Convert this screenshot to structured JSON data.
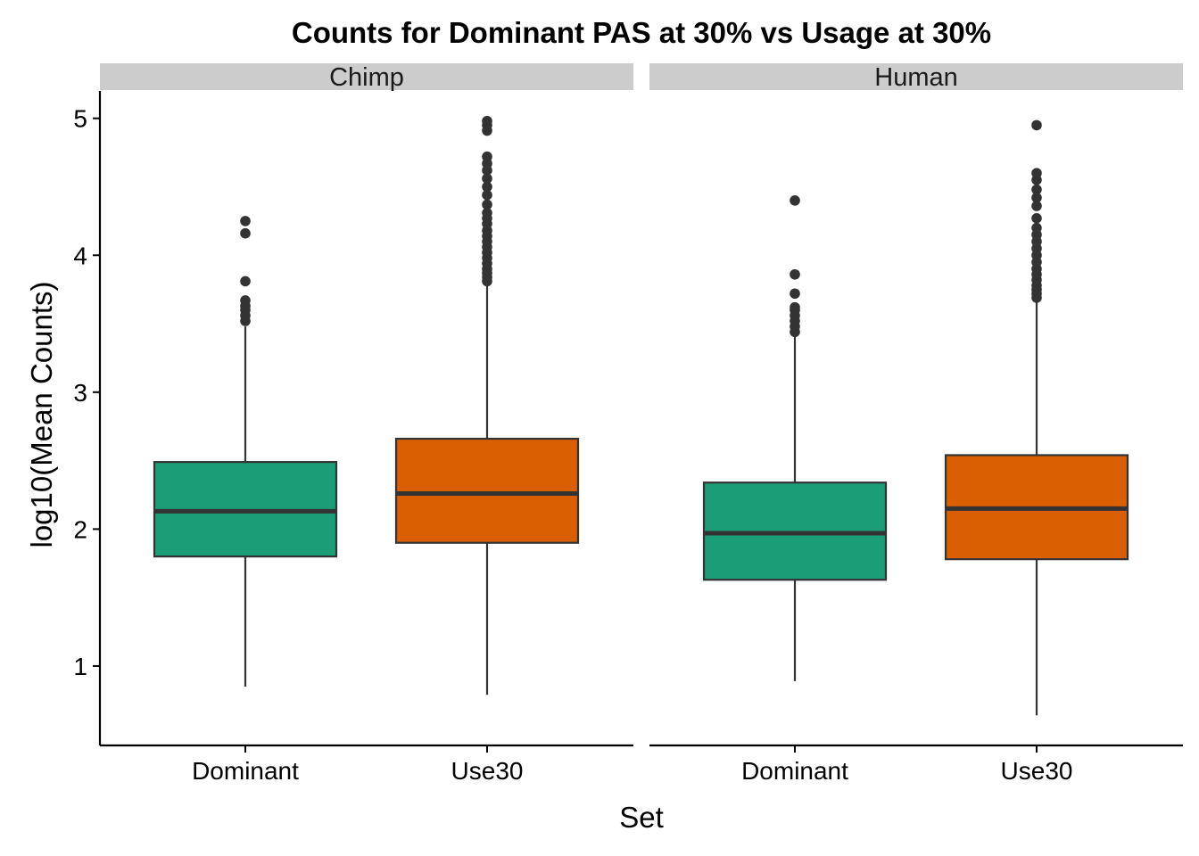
{
  "chart_data": {
    "type": "boxplot",
    "title": "Counts for Dominant PAS at 30% vs Usage at 30%",
    "xlabel": "Set",
    "ylabel": "log10(Mean Counts)",
    "ylim": [
      0.42,
      5.2
    ],
    "yticks": [
      1,
      2,
      3,
      4,
      5
    ],
    "categories": [
      "Dominant",
      "Use30"
    ],
    "colors": {
      "Dominant": "#1b9e77",
      "Use30": "#d95f02"
    },
    "grid": false,
    "legend": "none",
    "facets": [
      {
        "name": "Chimp",
        "boxes": [
          {
            "category": "Dominant",
            "whisker_low": 0.85,
            "q1": 1.8,
            "median": 2.13,
            "q3": 2.49,
            "whisker_high": 3.48,
            "outliers": [
              3.52,
              3.56,
              3.6,
              3.63,
              3.67,
              3.81,
              4.16,
              4.25
            ]
          },
          {
            "category": "Use30",
            "whisker_low": 0.79,
            "q1": 1.9,
            "median": 2.26,
            "q3": 2.66,
            "whisker_high": 3.79,
            "outliers": [
              3.81,
              3.84,
              3.87,
              3.9,
              3.94,
              3.98,
              4.02,
              4.06,
              4.1,
              4.14,
              4.18,
              4.23,
              4.27,
              4.31,
              4.37,
              4.44,
              4.5,
              4.56,
              4.62,
              4.67,
              4.72,
              4.91,
              4.95,
              4.98
            ]
          }
        ]
      },
      {
        "name": "Human",
        "boxes": [
          {
            "category": "Dominant",
            "whisker_low": 0.89,
            "q1": 1.63,
            "median": 1.97,
            "q3": 2.34,
            "whisker_high": 3.42,
            "outliers": [
              3.44,
              3.48,
              3.52,
              3.56,
              3.6,
              3.62,
              3.72,
              3.86,
              4.4
            ]
          },
          {
            "category": "Use30",
            "whisker_low": 0.64,
            "q1": 1.78,
            "median": 2.15,
            "q3": 2.54,
            "whisker_high": 3.67,
            "outliers": [
              3.69,
              3.72,
              3.75,
              3.78,
              3.82,
              3.86,
              3.9,
              3.95,
              4.0,
              4.05,
              4.1,
              4.15,
              4.2,
              4.27,
              4.36,
              4.42,
              4.48,
              4.55,
              4.6,
              4.95
            ]
          }
        ]
      }
    ]
  }
}
